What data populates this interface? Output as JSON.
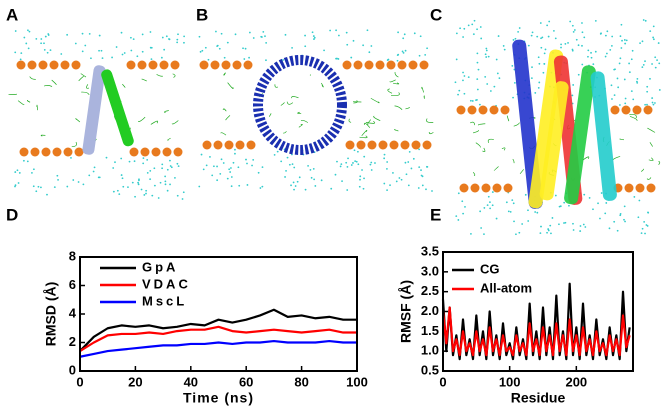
{
  "panels": [
    "A",
    "B",
    "C",
    "D",
    "E"
  ],
  "chart_data": [
    {
      "type": "line",
      "xlabel": "Time (ns)",
      "ylabel": "RMSD (Å)",
      "x": [
        0,
        5,
        10,
        15,
        20,
        25,
        30,
        35,
        40,
        45,
        50,
        55,
        60,
        65,
        70,
        75,
        80,
        85,
        90,
        95,
        100
      ],
      "xlim": [
        0,
        100
      ],
      "xticks": [
        0,
        20,
        40,
        60,
        80,
        100
      ],
      "ylim": [
        0,
        8
      ],
      "yticks": [
        0,
        2,
        4,
        6,
        8
      ],
      "series": [
        {
          "name": "GpA",
          "color": "#000000",
          "values": [
            1.4,
            2.4,
            3.0,
            3.2,
            3.1,
            3.2,
            3.0,
            3.1,
            3.3,
            3.2,
            3.6,
            3.4,
            3.6,
            3.9,
            4.3,
            3.8,
            3.9,
            3.7,
            3.8,
            3.6,
            3.6
          ]
        },
        {
          "name": "VDAC",
          "color": "#ff0000",
          "values": [
            1.4,
            2.0,
            2.5,
            2.6,
            2.6,
            2.7,
            2.6,
            2.8,
            2.9,
            2.9,
            3.1,
            2.8,
            2.7,
            2.8,
            2.9,
            2.8,
            2.7,
            2.8,
            2.9,
            2.7,
            2.7
          ]
        },
        {
          "name": "MscL",
          "color": "#0000ff",
          "values": [
            1.0,
            1.2,
            1.4,
            1.5,
            1.6,
            1.7,
            1.8,
            1.8,
            1.9,
            1.9,
            2.0,
            1.9,
            2.0,
            2.0,
            2.1,
            2.0,
            2.0,
            2.0,
            2.1,
            2.0,
            2.0
          ]
        }
      ]
    },
    {
      "type": "line",
      "xlabel": "Residue",
      "ylabel": "RMSF (Å)",
      "x": [
        0,
        5,
        10,
        15,
        20,
        25,
        30,
        35,
        40,
        45,
        50,
        55,
        60,
        65,
        70,
        75,
        80,
        85,
        90,
        95,
        100,
        105,
        110,
        115,
        120,
        125,
        130,
        135,
        140,
        145,
        150,
        155,
        160,
        165,
        170,
        175,
        180,
        185,
        190,
        195,
        200,
        205,
        210,
        215,
        220,
        225,
        230,
        235,
        240,
        245,
        250,
        255,
        260,
        265,
        270,
        275,
        280
      ],
      "xlim": [
        0,
        285
      ],
      "xticks": [
        0,
        100,
        200
      ],
      "ylim": [
        0.5,
        3.5
      ],
      "yticks": [
        0.5,
        {
          "value": 1,
          "label": "1.0"
        },
        1.5,
        {
          "value": 2,
          "label": "2.0"
        },
        2.5,
        {
          "value": 3,
          "label": "3.0"
        },
        3.5
      ],
      "series": [
        {
          "name": "CG",
          "color": "#000000",
          "values": [
            2.3,
            1.0,
            2.1,
            0.9,
            1.4,
            0.8,
            1.8,
            0.9,
            1.3,
            0.8,
            1.9,
            0.9,
            1.5,
            0.8,
            2.0,
            0.9,
            1.4,
            0.8,
            1.7,
            0.9,
            1.2,
            0.8,
            1.6,
            0.9,
            1.3,
            0.8,
            2.2,
            0.9,
            1.5,
            0.8,
            2.1,
            0.9,
            1.6,
            0.8,
            2.4,
            0.9,
            1.5,
            0.8,
            2.7,
            0.9,
            1.6,
            0.8,
            2.2,
            0.9,
            1.4,
            0.8,
            1.8,
            0.9,
            1.3,
            0.8,
            1.6,
            0.9,
            1.4,
            0.8,
            2.5,
            1.0,
            1.6
          ]
        },
        {
          "name": "All-atom",
          "color": "#ff0000",
          "values": [
            2.0,
            1.2,
            2.1,
            1.0,
            1.3,
            0.9,
            1.5,
            1.0,
            1.2,
            0.9,
            1.5,
            1.0,
            1.3,
            0.9,
            1.6,
            1.0,
            1.3,
            0.9,
            1.4,
            1.0,
            1.1,
            0.9,
            1.4,
            1.0,
            1.2,
            0.9,
            1.7,
            1.0,
            1.3,
            0.9,
            1.6,
            1.0,
            1.4,
            0.9,
            1.7,
            1.0,
            1.4,
            0.9,
            1.8,
            1.0,
            1.4,
            0.9,
            1.6,
            1.0,
            1.3,
            0.9,
            1.5,
            1.0,
            1.2,
            0.9,
            1.4,
            1.0,
            1.3,
            0.9,
            1.9,
            1.1,
            1.4
          ]
        }
      ]
    }
  ]
}
